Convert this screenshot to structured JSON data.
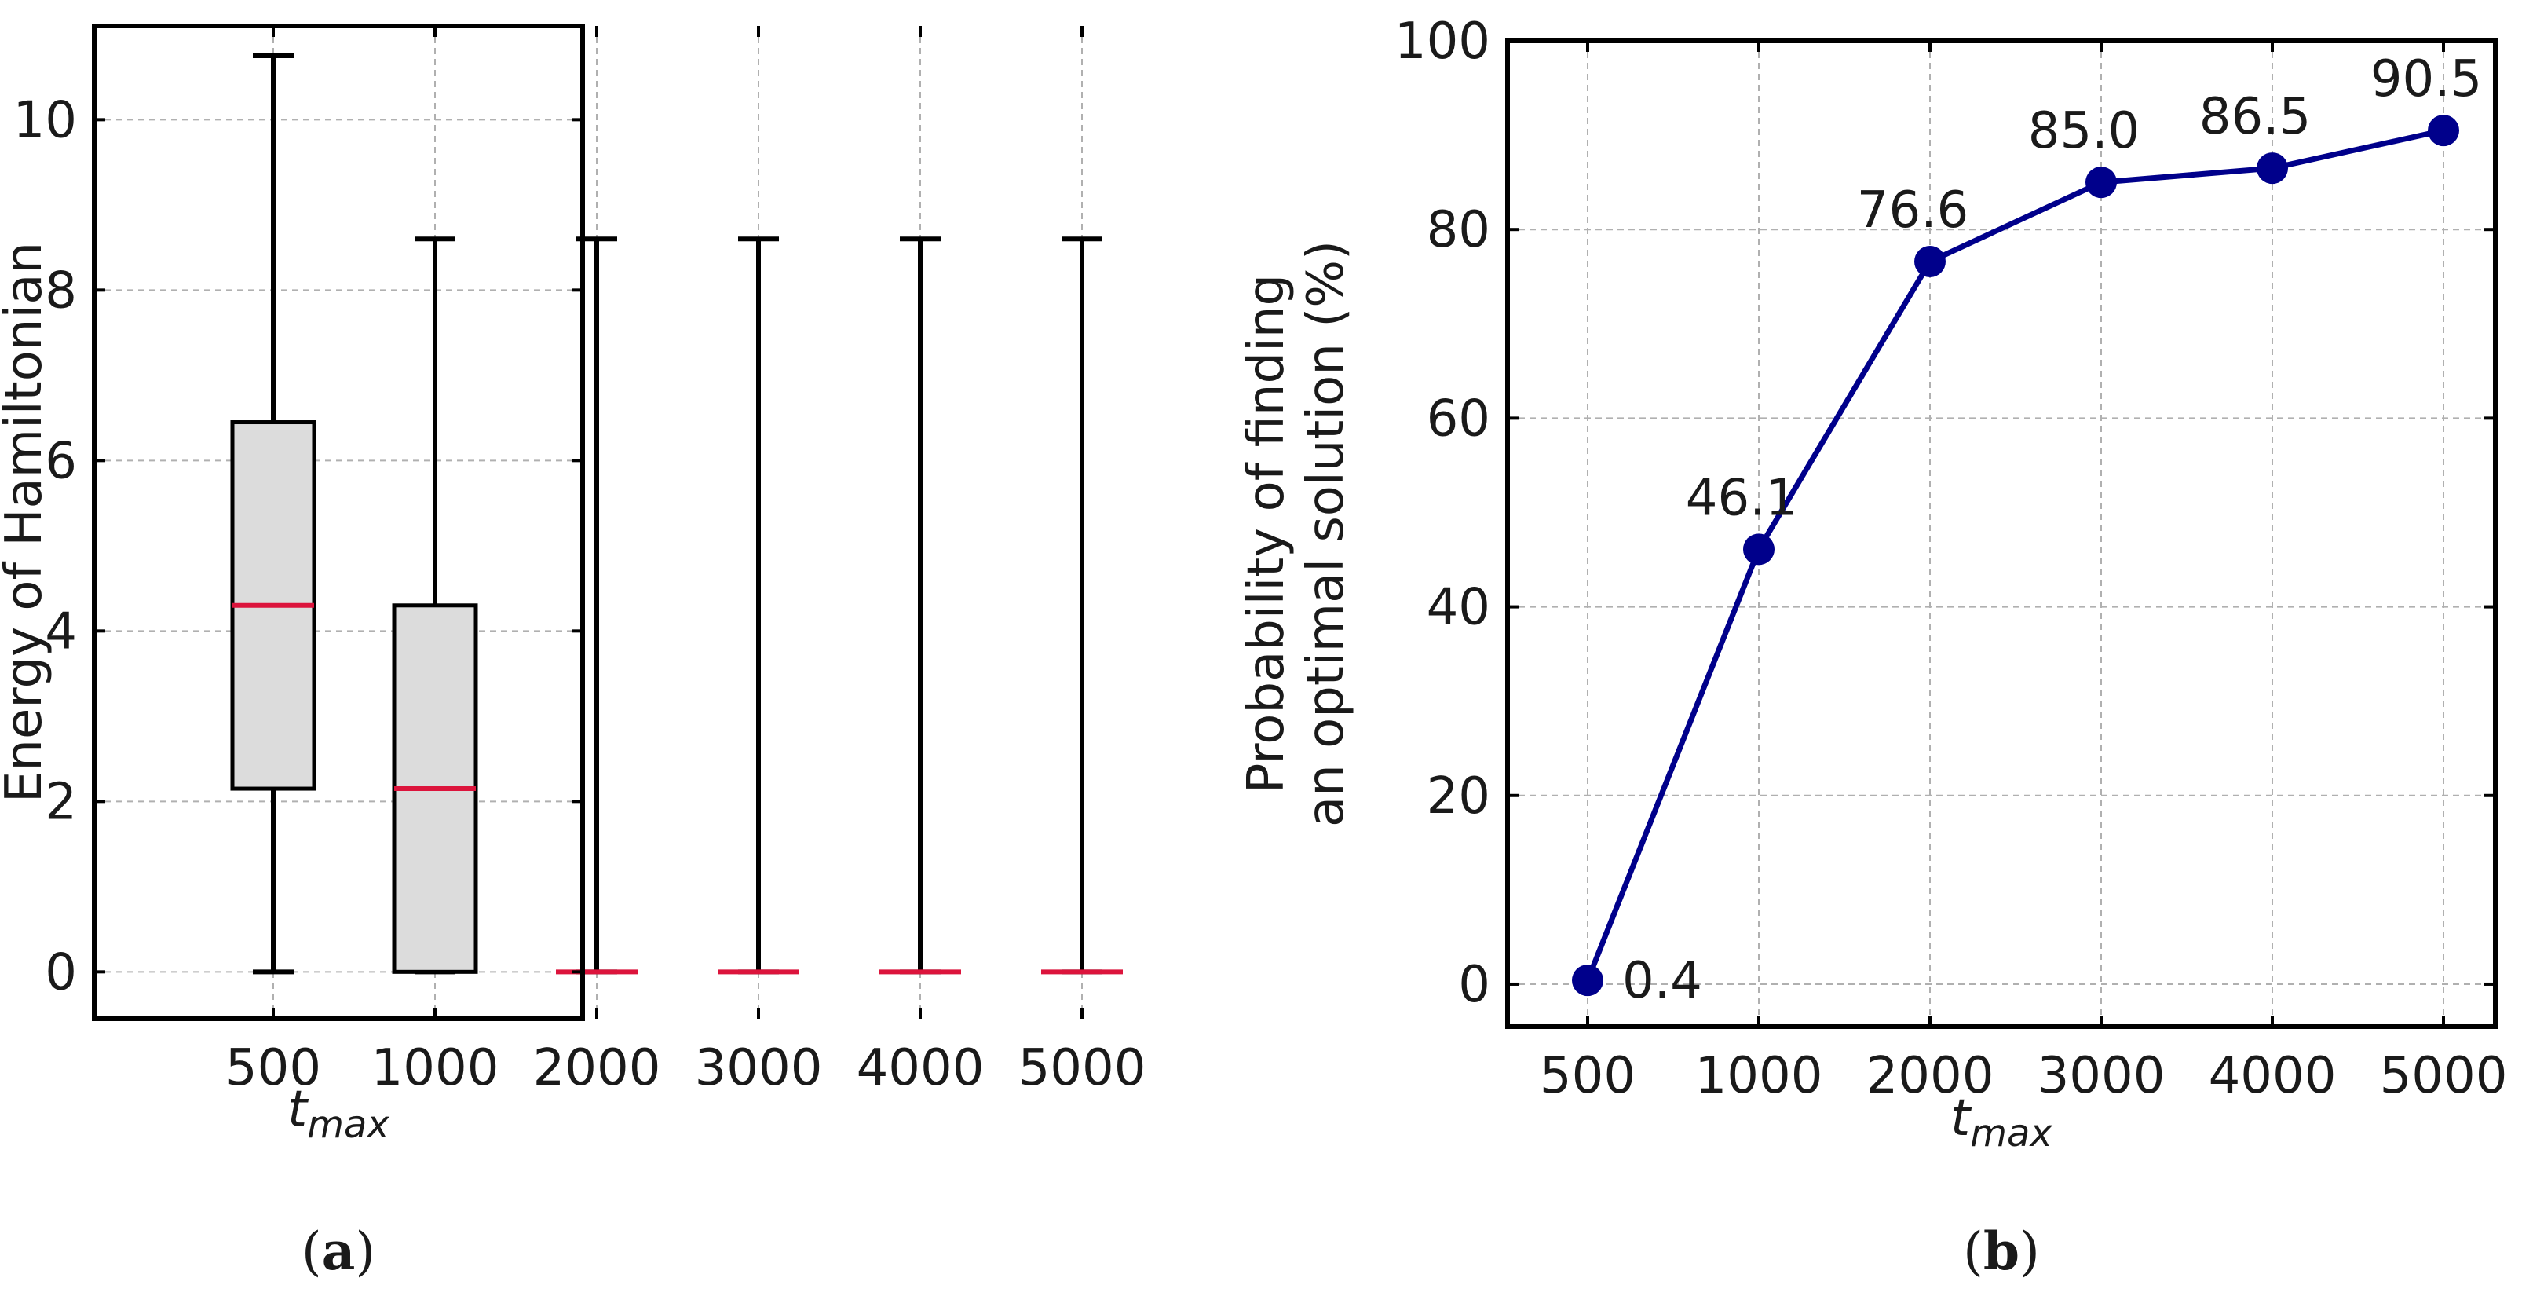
{
  "chart_data": [
    {
      "type": "box",
      "panel_label": "(a)",
      "panel_label_parts": [
        "(",
        "a",
        ")"
      ],
      "categories": [
        "500",
        "1000",
        "2000",
        "3000",
        "4000",
        "5000"
      ],
      "boxes": [
        {
          "whislo": 0,
          "q1": 2.15,
          "med": 4.3,
          "q3": 6.45,
          "whishi": 10.75
        },
        {
          "whislo": 0,
          "q1": 0,
          "med": 2.15,
          "q3": 4.3,
          "whishi": 8.6
        },
        {
          "whislo": 0,
          "q1": 0,
          "med": 0,
          "q3": 0,
          "whishi": 8.6
        },
        {
          "whislo": 0,
          "q1": 0,
          "med": 0,
          "q3": 0,
          "whishi": 8.6
        },
        {
          "whislo": 0,
          "q1": 0,
          "med": 0,
          "q3": 0,
          "whishi": 8.6
        },
        {
          "whislo": 0,
          "q1": 0,
          "med": 0,
          "q3": 0,
          "whishi": 8.6
        }
      ],
      "xlabel": "t",
      "xlabel_sub": "max",
      "ylabel": "Energy of Hamiltonian",
      "ylim": [
        -0.55,
        11.1
      ],
      "yticks": [
        0,
        2,
        4,
        6,
        8,
        10
      ],
      "grid": true,
      "colors": {
        "box_fill": "#dcdcdc",
        "median": "#dc143c",
        "line": "#000000"
      }
    },
    {
      "type": "line",
      "panel_label": "(b)",
      "panel_label_parts": [
        "(",
        "b",
        ")"
      ],
      "categories": [
        "500",
        "1000",
        "2000",
        "3000",
        "4000",
        "5000"
      ],
      "values": [
        0.4,
        46.1,
        76.6,
        85.0,
        86.5,
        90.5
      ],
      "data_labels": [
        "0.4",
        "46.1",
        "76.6",
        "85.0",
        "86.5",
        "90.5"
      ],
      "xlabel": "t",
      "xlabel_sub": "max",
      "ylabel_lines": [
        "Probability of finding",
        "an optimal solution (%)"
      ],
      "ylim": [
        -4.5,
        100
      ],
      "yticks": [
        0,
        20,
        40,
        60,
        80,
        100
      ],
      "grid": true,
      "colors": {
        "line": "#00008b",
        "marker": "#00008b"
      }
    }
  ]
}
